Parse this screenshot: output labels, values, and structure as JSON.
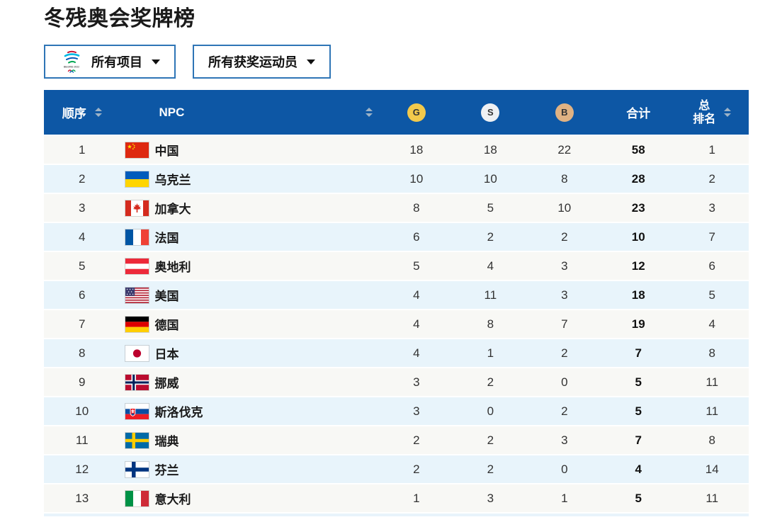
{
  "page": {
    "title": "冬残奥会奖牌榜"
  },
  "filters": {
    "events_dropdown": {
      "label": "所有项目",
      "icon": "beijing-2022-paralympic-emblem"
    },
    "athletes_dropdown": {
      "label": "所有获奖运动员"
    }
  },
  "colors": {
    "header_bg": "#0d57a5",
    "row_odd": "#f8f8f5",
    "row_even": "#e8f4fb",
    "dropdown_border": "#2e75b6",
    "sort_icon": "#9db3c7",
    "gold": "#f2c94c",
    "silver": "#eef0f3",
    "bronze": "#e0b283"
  },
  "table": {
    "columns": [
      {
        "key": "order",
        "label": "顺序",
        "type": "text",
        "sortable": true
      },
      {
        "key": "npc",
        "label": "NPC",
        "type": "npc",
        "sortable": true
      },
      {
        "key": "gold",
        "label": "G",
        "type": "medal",
        "medal": "gold"
      },
      {
        "key": "silver",
        "label": "S",
        "type": "medal",
        "medal": "silver"
      },
      {
        "key": "bronze",
        "label": "B",
        "type": "medal",
        "medal": "bronze"
      },
      {
        "key": "total",
        "label": "合计",
        "type": "text"
      },
      {
        "key": "overall_rank",
        "label": "总排名",
        "label_lines": [
          "总",
          "排名"
        ],
        "type": "text",
        "sortable": true
      }
    ],
    "column_widths": [
      "10.8%",
      "36.8%",
      "10.5%",
      "10.5%",
      "10.5%",
      "10.5%",
      "10.4%"
    ],
    "rows": [
      {
        "order": 1,
        "npc": "中国",
        "flag": "cn",
        "gold": 18,
        "silver": 18,
        "bronze": 22,
        "total": 58,
        "overall_rank": 1
      },
      {
        "order": 2,
        "npc": "乌克兰",
        "flag": "ua",
        "gold": 10,
        "silver": 10,
        "bronze": 8,
        "total": 28,
        "overall_rank": 2
      },
      {
        "order": 3,
        "npc": "加拿大",
        "flag": "ca",
        "gold": 8,
        "silver": 5,
        "bronze": 10,
        "total": 23,
        "overall_rank": 3
      },
      {
        "order": 4,
        "npc": "法国",
        "flag": "fr",
        "gold": 6,
        "silver": 2,
        "bronze": 2,
        "total": 10,
        "overall_rank": 7
      },
      {
        "order": 5,
        "npc": "奥地利",
        "flag": "at",
        "gold": 5,
        "silver": 4,
        "bronze": 3,
        "total": 12,
        "overall_rank": 6
      },
      {
        "order": 6,
        "npc": "美国",
        "flag": "us",
        "gold": 4,
        "silver": 11,
        "bronze": 3,
        "total": 18,
        "overall_rank": 5
      },
      {
        "order": 7,
        "npc": "德国",
        "flag": "de",
        "gold": 4,
        "silver": 8,
        "bronze": 7,
        "total": 19,
        "overall_rank": 4
      },
      {
        "order": 8,
        "npc": "日本",
        "flag": "jp",
        "gold": 4,
        "silver": 1,
        "bronze": 2,
        "total": 7,
        "overall_rank": 8
      },
      {
        "order": 9,
        "npc": "挪威",
        "flag": "no",
        "gold": 3,
        "silver": 2,
        "bronze": 0,
        "total": 5,
        "overall_rank": 11
      },
      {
        "order": 10,
        "npc": "斯洛伐克",
        "flag": "sk",
        "gold": 3,
        "silver": 0,
        "bronze": 2,
        "total": 5,
        "overall_rank": 11
      },
      {
        "order": 11,
        "npc": "瑞典",
        "flag": "se",
        "gold": 2,
        "silver": 2,
        "bronze": 3,
        "total": 7,
        "overall_rank": 8
      },
      {
        "order": 12,
        "npc": "芬兰",
        "flag": "fi",
        "gold": 2,
        "silver": 2,
        "bronze": 0,
        "total": 4,
        "overall_rank": 14
      },
      {
        "order": 13,
        "npc": "意大利",
        "flag": "it",
        "gold": 1,
        "silver": 3,
        "bronze": 1,
        "total": 5,
        "overall_rank": 11
      }
    ]
  }
}
